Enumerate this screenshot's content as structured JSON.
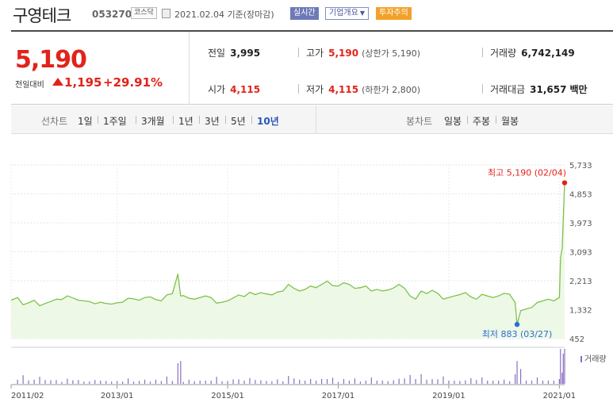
{
  "stock": {
    "name": "구영테크",
    "code": "053270",
    "market": "코스닥",
    "date": "2021.02.04",
    "basis": "기준(장마감)",
    "badge_realtime": "실시간",
    "badge_company": "기업개요",
    "badge_warning": "투자주의"
  },
  "price": {
    "current": "5,190",
    "compare_label": "전일대비",
    "change": "1,195",
    "rate": "+29.91%"
  },
  "info": {
    "prev_label": "전일",
    "prev_value": "3,995",
    "high_label": "고가",
    "high_value": "5,190",
    "high_note": "(상한가 5,190)",
    "volume_label": "거래량",
    "volume_value": "6,742,149",
    "open_label": "시가",
    "open_value": "4,115",
    "low_label": "저가",
    "low_value": "4,115",
    "low_note": "(하한가 2,800)",
    "amount_label": "거래대금",
    "amount_value": "31,657",
    "amount_unit": "백만"
  },
  "periods": {
    "label": "선차트",
    "items": [
      "1일",
      "1주일",
      "3개월",
      "1년",
      "3년",
      "5년",
      "10년"
    ],
    "selected": "10년",
    "candle_label": "봉차트",
    "candle_items": [
      "일봉",
      "주봉",
      "월봉"
    ]
  },
  "chart_data": {
    "type": "area",
    "title": "",
    "xlabel": "",
    "ylabel": "",
    "ylim": [
      452,
      5733
    ],
    "y_ticks": [
      "5,733",
      "4,853",
      "3,973",
      "3,093",
      "2,213",
      "1,332",
      "452"
    ],
    "x_ticks": [
      "2011/02",
      "2013/01",
      "2015/01",
      "2017/01",
      "2019/01",
      "2021/01"
    ],
    "x_tick_dates": [
      2011.083,
      2013.0,
      2015.0,
      2017.0,
      2019.0,
      2021.0
    ],
    "x_range": [
      2011.083,
      2021.095
    ],
    "grid": true,
    "line_color": "#7cc34a",
    "fill_color": "#eef8e6",
    "high_label": "최고 5,190 (02/04)",
    "low_label": "최저 883 (03/27)",
    "high_point": {
      "x": 2021.095,
      "y": 5190
    },
    "low_point": {
      "x": 2020.235,
      "y": 883
    },
    "volume_label": "거래량",
    "series": [
      {
        "x": [
          2011.083,
          2011.2,
          2011.3,
          2011.4,
          2011.5,
          2011.6,
          2011.7,
          2011.8,
          2011.9,
          2012.0,
          2012.1,
          2012.2,
          2012.3,
          2012.4,
          2012.5,
          2012.6,
          2012.7,
          2012.8,
          2012.9,
          2013.0,
          2013.1,
          2013.2,
          2013.3,
          2013.4,
          2013.5,
          2013.6,
          2013.7,
          2013.8,
          2013.9,
          2014.0,
          2014.1,
          2014.15,
          2014.2,
          2014.3,
          2014.4,
          2014.5,
          2014.6,
          2014.7,
          2014.8,
          2014.9,
          2015.0,
          2015.1,
          2015.2,
          2015.3,
          2015.4,
          2015.5,
          2015.6,
          2015.7,
          2015.8,
          2015.9,
          2016.0,
          2016.1,
          2016.2,
          2016.3,
          2016.4,
          2016.5,
          2016.6,
          2016.7,
          2016.8,
          2016.9,
          2017.0,
          2017.1,
          2017.2,
          2017.3,
          2017.4,
          2017.5,
          2017.6,
          2017.7,
          2017.8,
          2017.9,
          2018.0,
          2018.1,
          2018.2,
          2018.3,
          2018.4,
          2018.5,
          2018.6,
          2018.7,
          2018.8,
          2018.9,
          2019.0,
          2019.1,
          2019.2,
          2019.3,
          2019.4,
          2019.5,
          2019.6,
          2019.7,
          2019.8,
          2019.9,
          2020.0,
          2020.1,
          2020.2,
          2020.235,
          2020.3,
          2020.4,
          2020.5,
          2020.6,
          2020.7,
          2020.8,
          2020.9,
          2021.0,
          2021.02,
          2021.05,
          2021.07,
          2021.095
        ],
        "y": [
          1620,
          1700,
          1480,
          1540,
          1620,
          1450,
          1520,
          1580,
          1650,
          1640,
          1750,
          1690,
          1620,
          1600,
          1580,
          1510,
          1560,
          1520,
          1500,
          1540,
          1560,
          1680,
          1660,
          1620,
          1700,
          1720,
          1640,
          1600,
          1780,
          1820,
          2420,
          1750,
          1760,
          1680,
          1650,
          1700,
          1750,
          1700,
          1530,
          1560,
          1600,
          1690,
          1780,
          1730,
          1860,
          1790,
          1850,
          1810,
          1780,
          1870,
          1900,
          2100,
          1980,
          1900,
          1950,
          2050,
          2000,
          2100,
          2200,
          2060,
          2050,
          2150,
          2100,
          1980,
          2000,
          2050,
          1900,
          1950,
          1900,
          1930,
          1990,
          2100,
          1980,
          1750,
          1650,
          1900,
          1820,
          1920,
          1830,
          1650,
          1700,
          1750,
          1790,
          1850,
          1720,
          1650,
          1800,
          1750,
          1700,
          1750,
          1830,
          1800,
          1550,
          883,
          1300,
          1350,
          1400,
          1550,
          1600,
          1650,
          1600,
          1700,
          2900,
          3200,
          4100,
          5190
        ]
      }
    ]
  }
}
